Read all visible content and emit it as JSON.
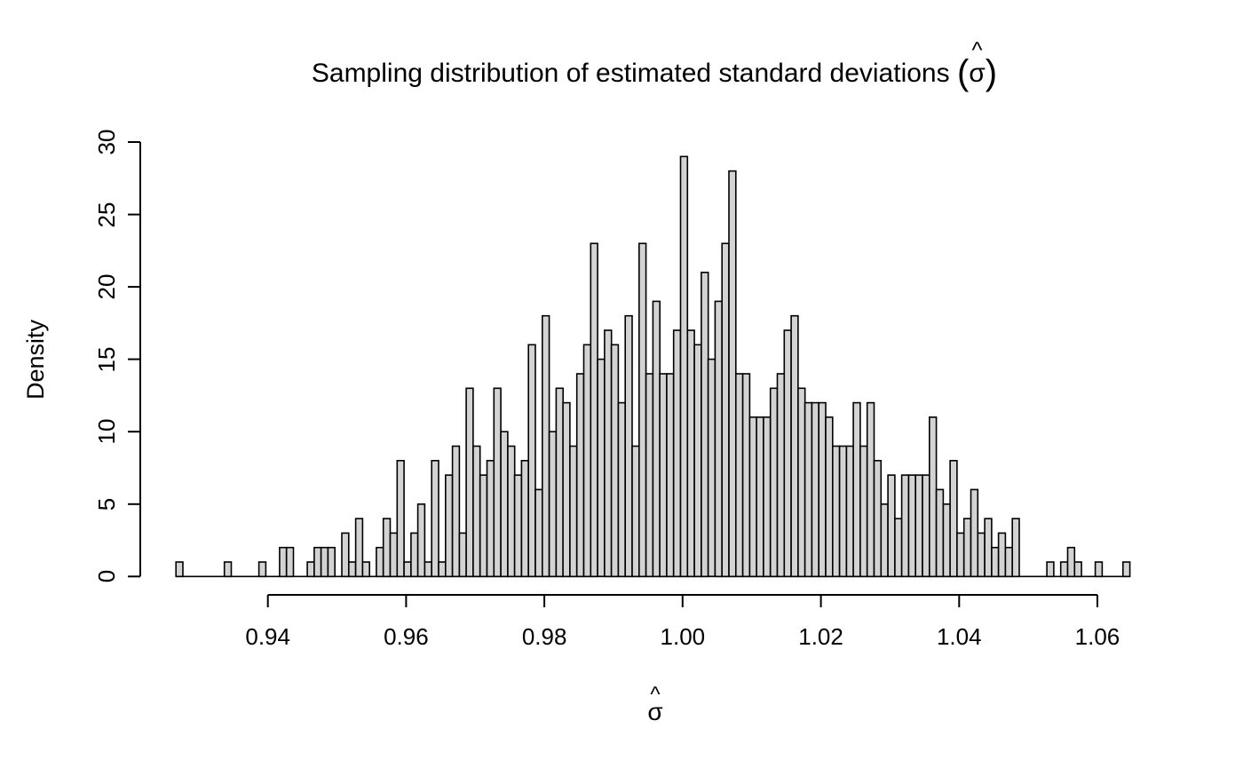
{
  "title": {
    "prefix": "Sampling distribution of estimated standard deviations ",
    "open_paren": "(",
    "sigma": "σ",
    "hat": "^",
    "close_paren": ")"
  },
  "chart_data": {
    "type": "bar",
    "subtype": "histogram",
    "title": "Sampling distribution of estimated standard deviations (σ̂)",
    "xlabel": "σ̂",
    "ylabel": "Density",
    "x_ticks": [
      0.94,
      0.96,
      0.98,
      1.0,
      1.02,
      1.04,
      1.06
    ],
    "x_tick_labels": [
      "0.94",
      "0.96",
      "0.98",
      "1.00",
      "1.02",
      "1.04",
      "1.06"
    ],
    "y_ticks": [
      0,
      5,
      10,
      15,
      20,
      25,
      30
    ],
    "y_tick_labels": [
      "0",
      "5",
      "10",
      "15",
      "20",
      "25",
      "30"
    ],
    "xlim": [
      0.9267,
      1.0647
    ],
    "ylim": [
      0,
      30
    ],
    "bin_start": 0.9267,
    "bin_width": 0.001,
    "densities": [
      1,
      0,
      0,
      0,
      0,
      0,
      0,
      1,
      0,
      0,
      0,
      0,
      1,
      0,
      0,
      2,
      2,
      0,
      0,
      1,
      2,
      2,
      2,
      0,
      3,
      1,
      4,
      1,
      0,
      2,
      4,
      3,
      8,
      1,
      3,
      5,
      1,
      8,
      1,
      7,
      9,
      3,
      13,
      9,
      7,
      8,
      13,
      10,
      9,
      7,
      8,
      16,
      6,
      18,
      10,
      13,
      12,
      9,
      14,
      16,
      23,
      15,
      17,
      16,
      12,
      18,
      9,
      23,
      14,
      19,
      14,
      14,
      17,
      29,
      17,
      16,
      21,
      15,
      19,
      23,
      28,
      14,
      14,
      11,
      11,
      11,
      13,
      14,
      17,
      18,
      13,
      12,
      12,
      12,
      11,
      9,
      9,
      9,
      12,
      9,
      12,
      8,
      5,
      7,
      4,
      7,
      7,
      7,
      7,
      11,
      6,
      5,
      8,
      3,
      4,
      6,
      3,
      4,
      2,
      3,
      2,
      4,
      0,
      0,
      0,
      0,
      1,
      0,
      1,
      2,
      1,
      0,
      0,
      1,
      0,
      0,
      0,
      1
    ],
    "grid": false,
    "legend": false,
    "bar_fill": "#d3d3d3",
    "bar_stroke": "#000000",
    "axis_color": "#000000"
  }
}
